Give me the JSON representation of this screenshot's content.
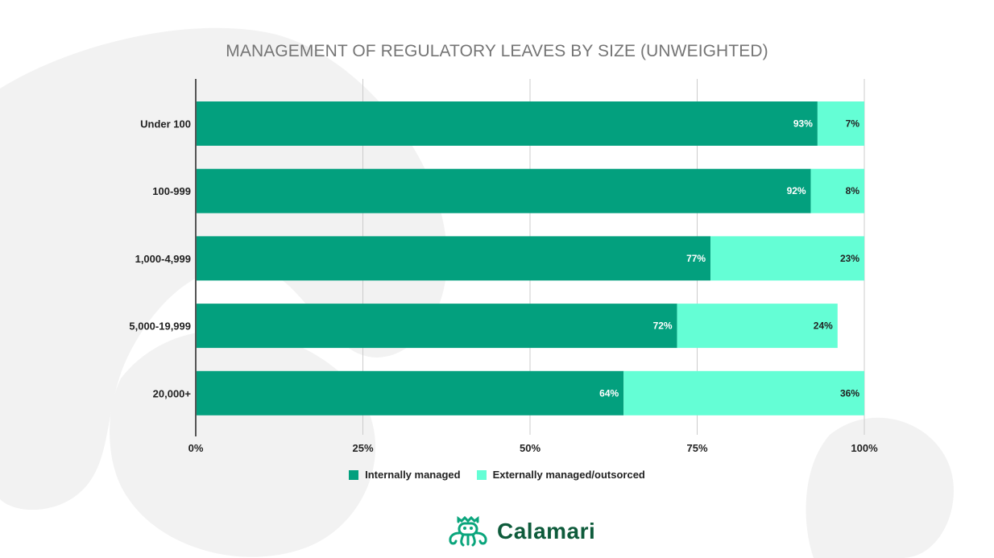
{
  "chart_data": {
    "type": "bar",
    "orientation": "horizontal",
    "stacked": true,
    "title": "MANAGEMENT OF REGULATORY LEAVES BY SIZE (UNWEIGHTED)",
    "categories": [
      "Under 100",
      "100-999",
      "1,000-4,999",
      "5,000-19,999",
      "20,000+"
    ],
    "series": [
      {
        "name": "Internally managed",
        "values": [
          93,
          92,
          77,
          72,
          64
        ],
        "labels": [
          "93%",
          "92%",
          "77%",
          "72%",
          "64%"
        ]
      },
      {
        "name": "Externally managed/outsorced",
        "values": [
          7,
          8,
          23,
          24,
          36
        ],
        "labels": [
          "7%",
          "8%",
          "23%",
          "24%",
          "36%"
        ]
      }
    ],
    "xlim": [
      0,
      100
    ],
    "ticks": [
      0,
      25,
      50,
      75,
      100
    ],
    "tick_labels": [
      "0%",
      "25%",
      "50%",
      "75%",
      "100%"
    ],
    "grid": true,
    "legend": "bottom"
  },
  "colors": {
    "internal": "#03a07e",
    "external": "#64fed5",
    "internal_label": "#ffffff",
    "external_label": "#222222"
  },
  "logo": {
    "text": "Calamari",
    "icon": "octopus-icon"
  }
}
